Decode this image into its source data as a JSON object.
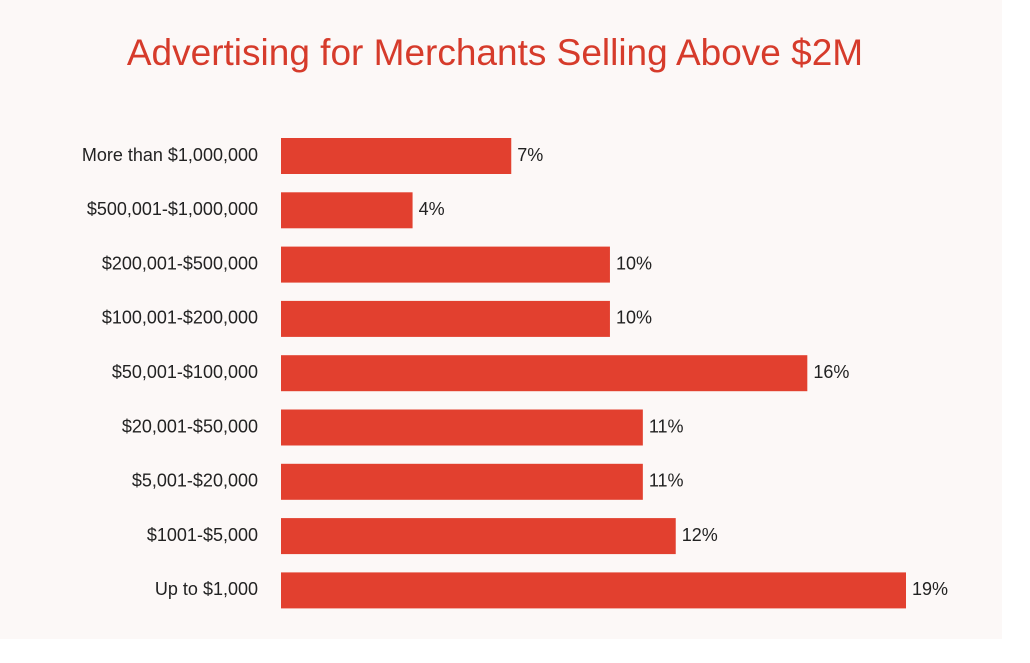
{
  "colors": {
    "bar": "#e2402f",
    "title": "#d63b2b",
    "text": "#222222"
  },
  "chart_data": {
    "type": "bar",
    "orientation": "horizontal",
    "title": "Advertising for Merchants Selling Above $2M",
    "categories": [
      "More than $1,000,000",
      "$500,001-$1,000,000",
      "$200,001-$500,000",
      "$100,001-$200,000",
      "$50,001-$100,000",
      "$20,001-$50,000",
      "$5,001-$20,000",
      "$1001-$5,000",
      "Up to $1,000"
    ],
    "values": [
      7,
      4,
      10,
      10,
      16,
      11,
      11,
      12,
      19
    ],
    "value_labels": [
      "7%",
      "4%",
      "10%",
      "10%",
      "16%",
      "11%",
      "11%",
      "12%",
      "19%"
    ],
    "xlim": [
      0,
      19
    ],
    "grid": false,
    "xlabel": "",
    "ylabel": ""
  }
}
